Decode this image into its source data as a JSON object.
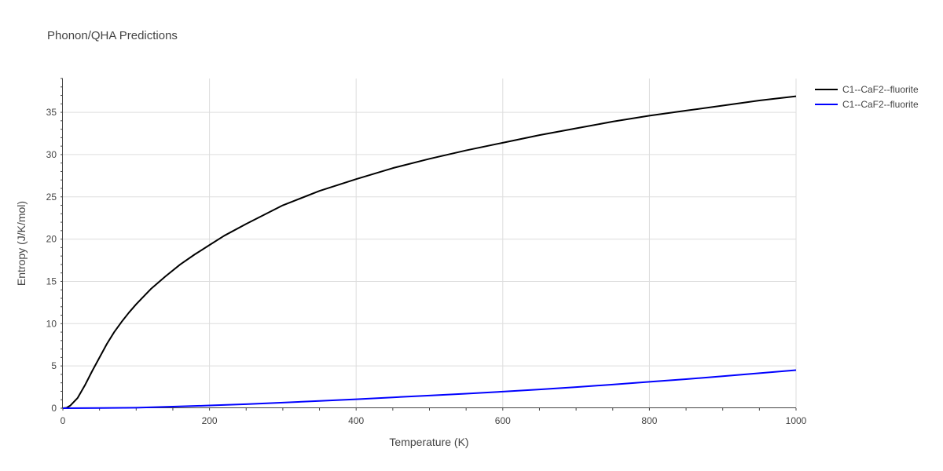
{
  "chart_data": {
    "type": "line",
    "title": "Phonon/QHA Predictions",
    "xlabel": "Temperature (K)",
    "ylabel": "Entropy (J/K/mol)",
    "xlim": [
      0,
      1000
    ],
    "ylim": [
      0,
      39
    ],
    "x_ticks": [
      0,
      200,
      400,
      600,
      800,
      1000
    ],
    "y_ticks": [
      0,
      5,
      10,
      15,
      20,
      25,
      30,
      35
    ],
    "grid": true,
    "legend_position": "top-right",
    "series": [
      {
        "name": "C1--CaF2--fluorite",
        "color": "#000000",
        "x": [
          0,
          5,
          10,
          20,
          30,
          40,
          50,
          60,
          70,
          80,
          90,
          100,
          120,
          140,
          160,
          180,
          200,
          220,
          250,
          300,
          350,
          400,
          450,
          500,
          550,
          600,
          650,
          700,
          750,
          800,
          850,
          900,
          950,
          1000
        ],
        "y": [
          0,
          0.05,
          0.3,
          1.2,
          2.7,
          4.4,
          6.0,
          7.6,
          9.0,
          10.2,
          11.3,
          12.3,
          14.1,
          15.6,
          17.0,
          18.2,
          19.3,
          20.4,
          21.8,
          24.0,
          25.7,
          27.1,
          28.4,
          29.5,
          30.5,
          31.4,
          32.3,
          33.1,
          33.9,
          34.6,
          35.2,
          35.8,
          36.4,
          36.9
        ]
      },
      {
        "name": "C1--CaF2--fluorite",
        "color": "#0000ff",
        "x": [
          0,
          50,
          100,
          150,
          200,
          250,
          300,
          350,
          400,
          450,
          500,
          550,
          600,
          650,
          700,
          750,
          800,
          850,
          900,
          950,
          1000
        ],
        "y": [
          0,
          0.02,
          0.06,
          0.18,
          0.32,
          0.48,
          0.66,
          0.86,
          1.06,
          1.28,
          1.5,
          1.72,
          1.96,
          2.22,
          2.5,
          2.8,
          3.12,
          3.44,
          3.78,
          4.14,
          4.5
        ]
      }
    ]
  }
}
